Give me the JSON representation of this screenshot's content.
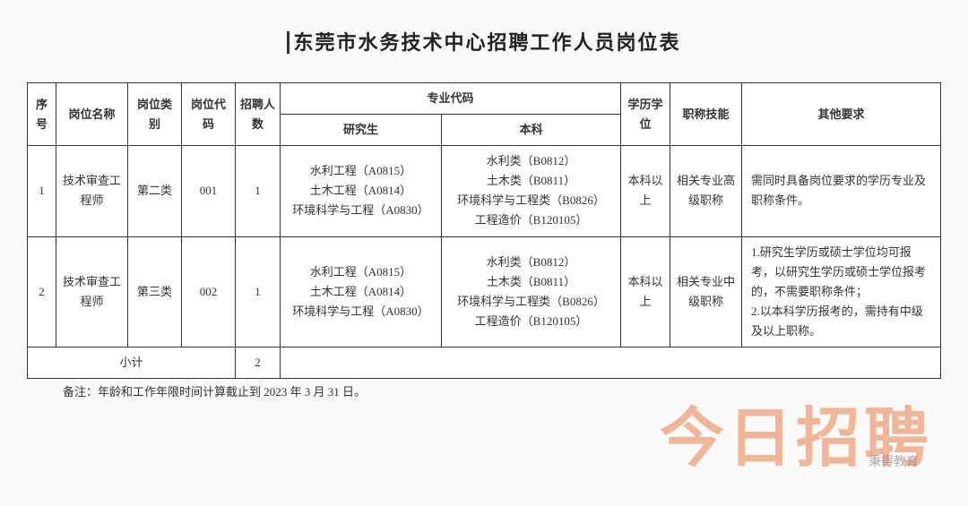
{
  "title": "东莞市水务技术中心招聘工作人员岗位表",
  "header": {
    "seq": "序号",
    "name": "岗位名称",
    "category": "岗位类别",
    "code": "岗位代码",
    "count": "招聘人数",
    "major_group": "专业代码",
    "major_grad": "研究生",
    "major_under": "本科",
    "edu": "学历学位",
    "title_req": "职称技能",
    "other": "其他要求"
  },
  "rows": [
    {
      "seq": "1",
      "name": "技术审查工程师",
      "category": "第二类",
      "code": "001",
      "count": "1",
      "grad": "水利工程（A0815）\n土木工程（A0814）\n环境科学与工程（A0830）",
      "under": "水利类（B0812）\n土木类（B0811）\n环境科学与工程类（B0826）\n工程造价（B120105）",
      "edu": "本科以上",
      "title_req": "相关专业高级职称",
      "other": "需同时具备岗位要求的学历专业及职称条件。"
    },
    {
      "seq": "2",
      "name": "技术审查工程师",
      "category": "第三类",
      "code": "002",
      "count": "1",
      "grad": "水利工程（A0815）\n土木工程（A0814）\n环境科学与工程（A0830）",
      "under": "水利类（B0812）\n土木类（B0811）\n环境科学与工程类（B0826）\n工程造价（B120105）",
      "edu": "本科以上",
      "title_req": "相关专业中级职称",
      "other": "1.研究生学历或硕士学位均可报考，以研究生学历或硕士学位报考的，不需要职称条件；\n2.以本科学历报考的，需持有中级及以上职称。"
    }
  ],
  "subtotal": {
    "label": "小计",
    "count": "2"
  },
  "footnote": "备注：年龄和工作年限时间计算截止到 2023 年 3 月 31 日。",
  "watermark": "今日招聘",
  "watermark_sub": "秉得教育",
  "styling": {
    "page_bg": "#fafafa",
    "border_color": "#333333",
    "text_color": "#333333",
    "title_fontsize": 22,
    "cell_fontsize": 13,
    "watermark_color": "rgba(230,100,30,0.45)",
    "watermark_fontsize": 72
  }
}
